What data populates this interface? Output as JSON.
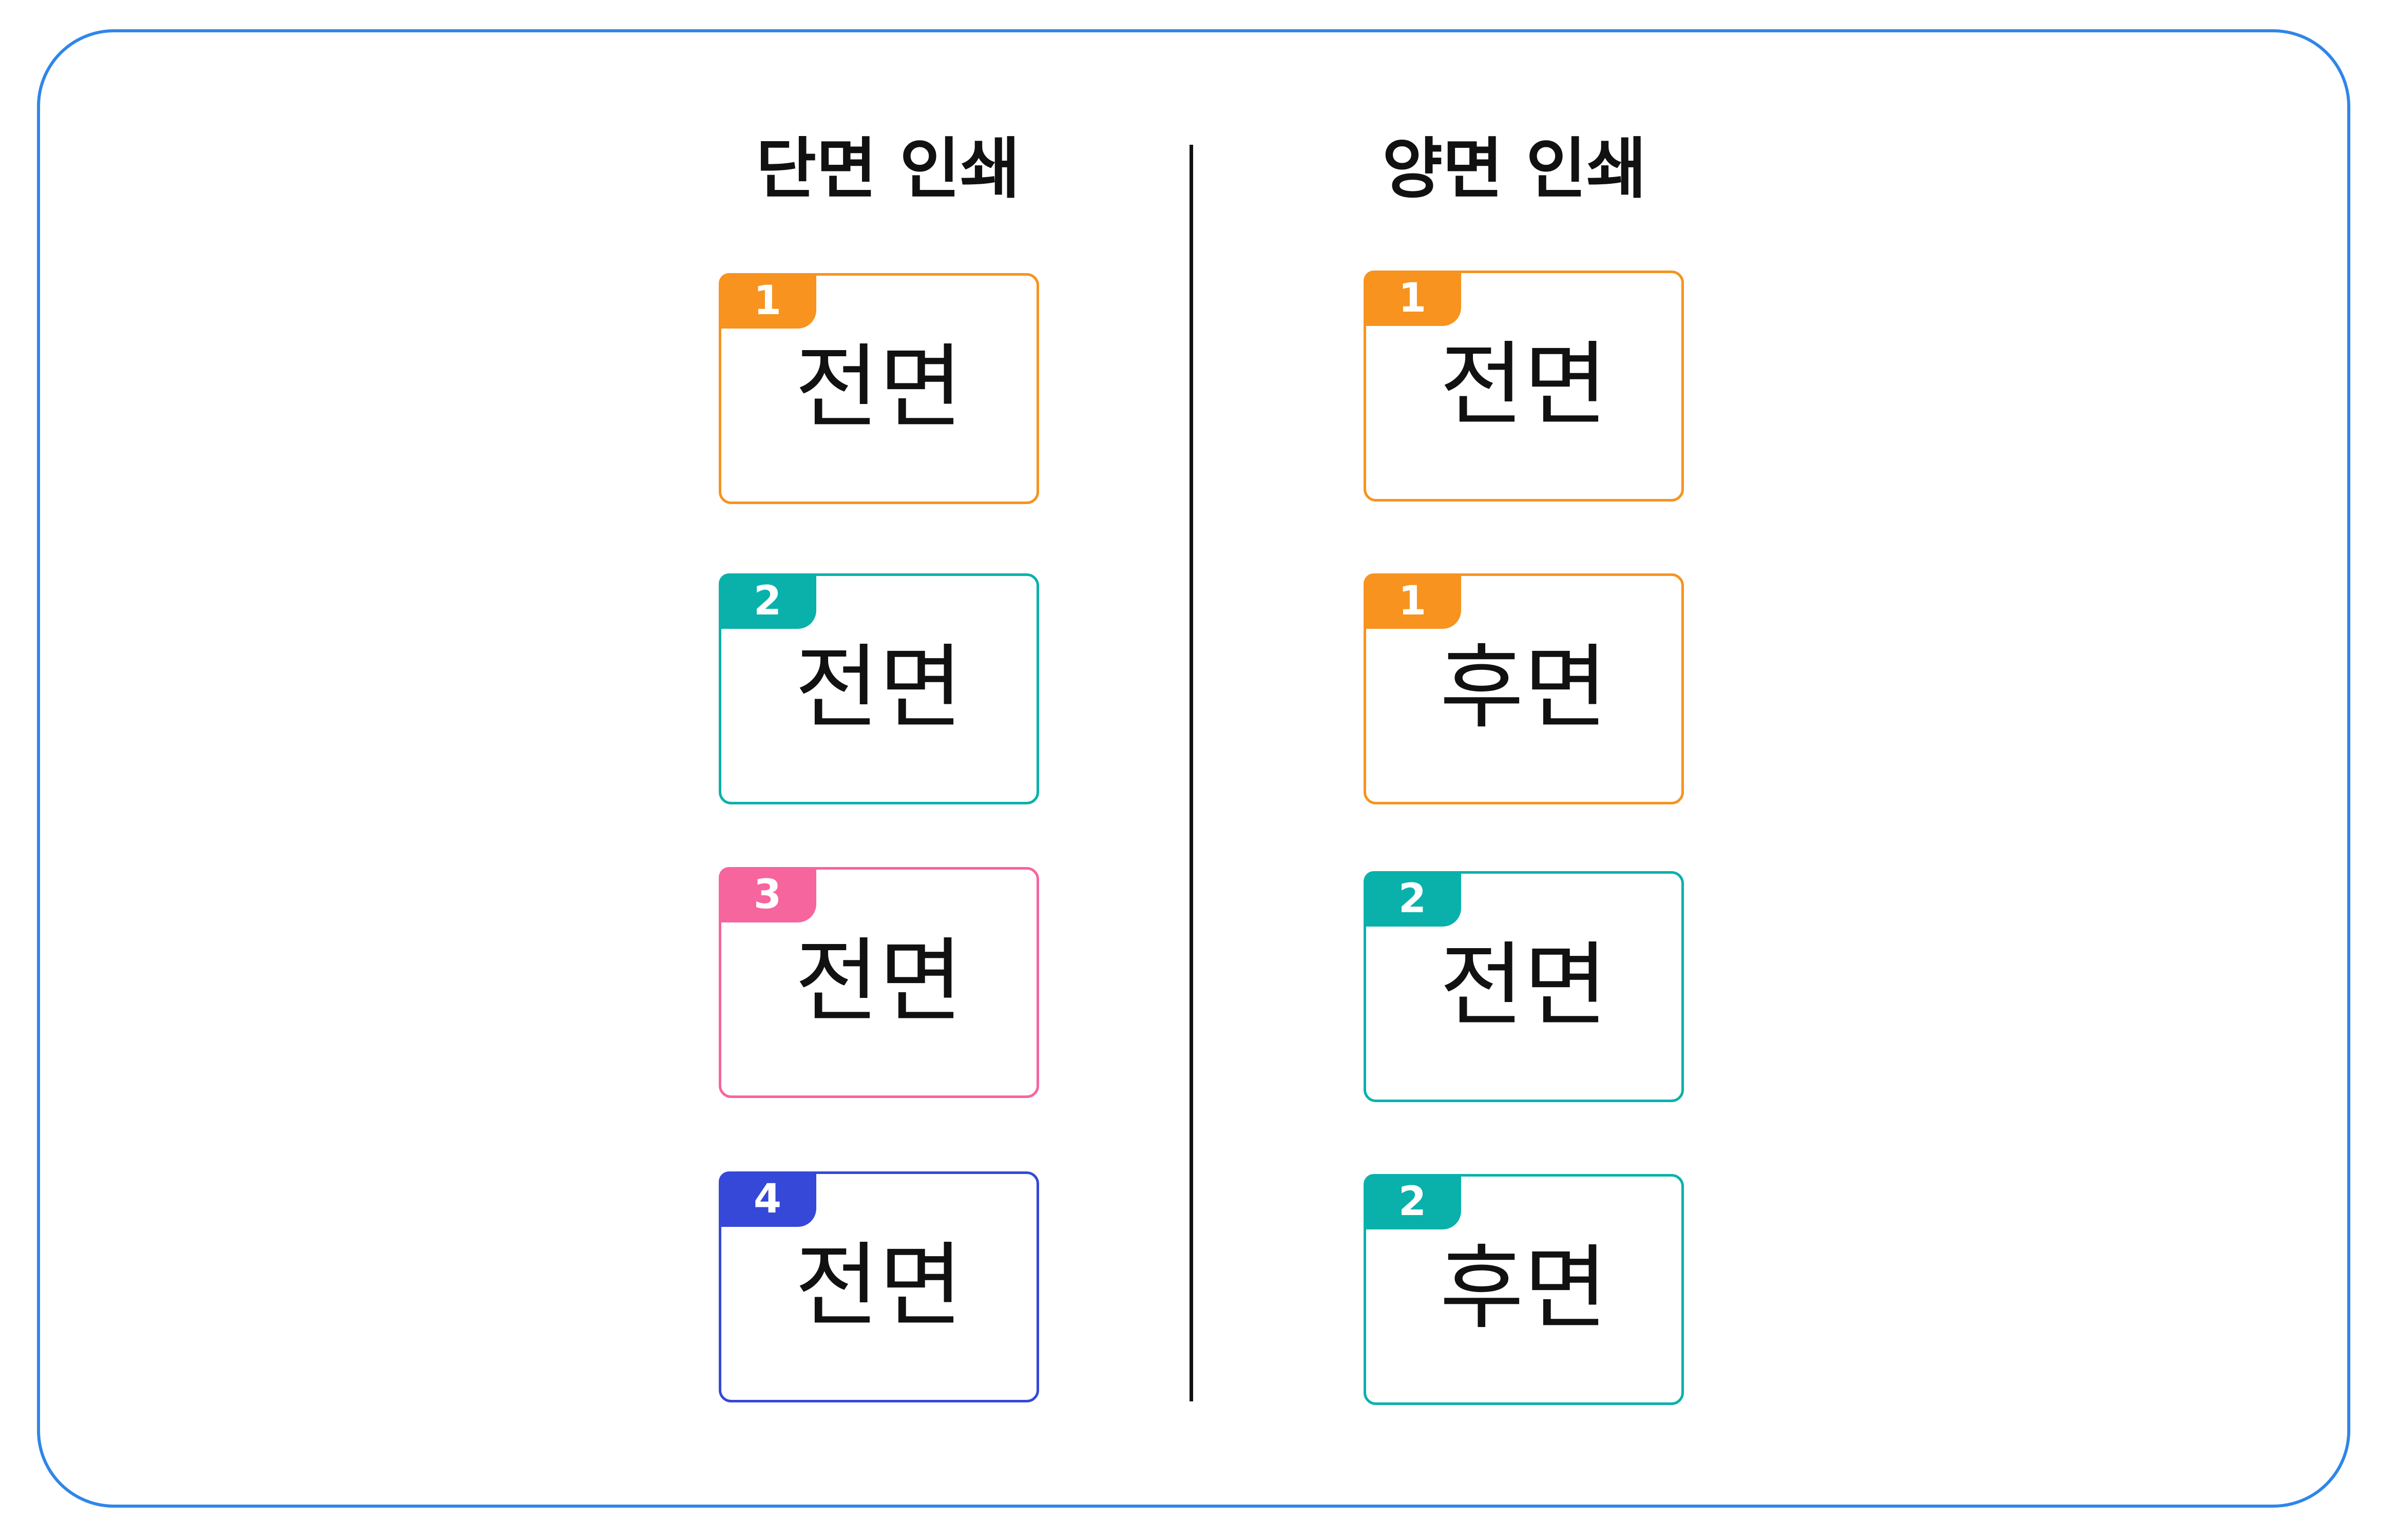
{
  "headings": {
    "single_sided": "단면 인쇄",
    "double_sided": "양면 인쇄"
  },
  "colors": {
    "frame_border": "#2f86e8",
    "orange": "#f7931e",
    "teal": "#0ab1ab",
    "pink": "#f7659e",
    "blue": "#3548d8",
    "text": "#111111"
  },
  "single_sided": {
    "pages": [
      {
        "number": "1",
        "side": "전면",
        "color": "orange"
      },
      {
        "number": "2",
        "side": "전면",
        "color": "teal"
      },
      {
        "number": "3",
        "side": "전면",
        "color": "pink"
      },
      {
        "number": "4",
        "side": "전면",
        "color": "blue"
      }
    ]
  },
  "double_sided": {
    "pages": [
      {
        "number": "1",
        "side": "전면",
        "color": "orange"
      },
      {
        "number": "1",
        "side": "후면",
        "color": "orange"
      },
      {
        "number": "2",
        "side": "전면",
        "color": "teal"
      },
      {
        "number": "2",
        "side": "후면",
        "color": "teal"
      }
    ]
  }
}
